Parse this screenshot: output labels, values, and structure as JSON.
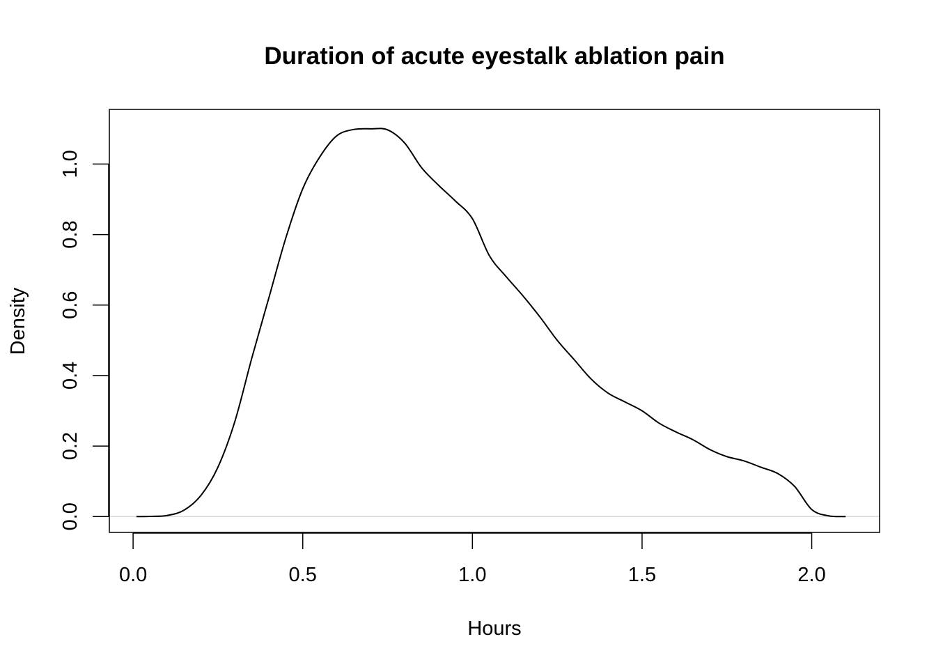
{
  "chart_data": {
    "type": "line",
    "title": "Duration of acute eyestalk ablation pain",
    "xlabel": "Hours",
    "ylabel": "Density",
    "xlim": [
      -0.07,
      2.2
    ],
    "ylim": [
      -0.045,
      1.155
    ],
    "xticks": [
      0.0,
      0.5,
      1.0,
      1.5,
      2.0
    ],
    "xtick_labels": [
      "0.0",
      "0.5",
      "1.0",
      "1.5",
      "2.0"
    ],
    "yticks": [
      0.0,
      0.2,
      0.4,
      0.6,
      0.8,
      1.0
    ],
    "ytick_labels": [
      "0.0",
      "0.2",
      "0.4",
      "0.6",
      "0.8",
      "1.0"
    ],
    "baseline": 0,
    "grid": false,
    "series": [
      {
        "color": "#000000",
        "x": [
          0.01,
          0.05,
          0.1,
          0.15,
          0.2,
          0.25,
          0.3,
          0.35,
          0.4,
          0.45,
          0.5,
          0.55,
          0.6,
          0.65,
          0.7,
          0.75,
          0.8,
          0.85,
          0.9,
          0.95,
          1.0,
          1.05,
          1.1,
          1.15,
          1.2,
          1.25,
          1.3,
          1.35,
          1.4,
          1.45,
          1.5,
          1.55,
          1.6,
          1.65,
          1.7,
          1.75,
          1.8,
          1.85,
          1.9,
          1.95,
          2.0,
          2.05,
          2.1
        ],
        "y": [
          0.0,
          0.0005,
          0.003,
          0.018,
          0.06,
          0.14,
          0.27,
          0.45,
          0.62,
          0.79,
          0.93,
          1.02,
          1.08,
          1.098,
          1.1,
          1.097,
          1.06,
          0.99,
          0.94,
          0.895,
          0.845,
          0.74,
          0.68,
          0.625,
          0.565,
          0.5,
          0.445,
          0.39,
          0.35,
          0.325,
          0.3,
          0.265,
          0.24,
          0.218,
          0.19,
          0.17,
          0.158,
          0.14,
          0.122,
          0.085,
          0.02,
          0.002,
          0.0
        ]
      }
    ]
  }
}
